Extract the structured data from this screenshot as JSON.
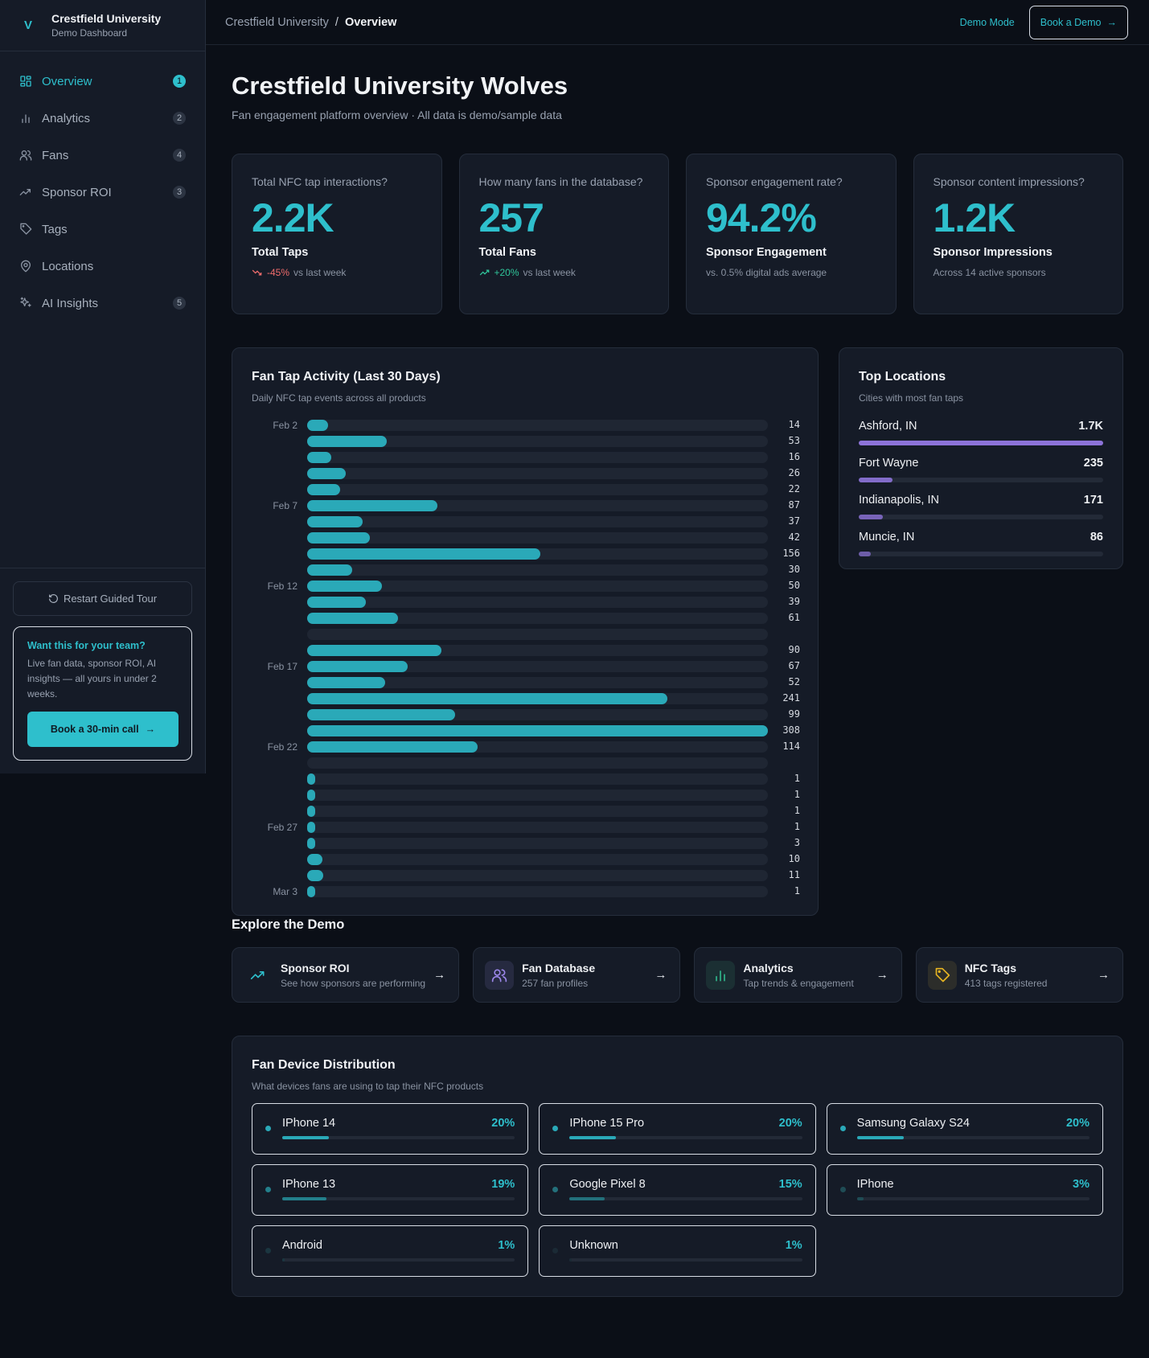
{
  "brand": {
    "logo": "V",
    "name": "Crestfield University",
    "subtitle": "Demo Dashboard"
  },
  "sidebar": {
    "items": [
      {
        "label": "Overview",
        "icon": "grid-icon",
        "badge": "1",
        "active": true
      },
      {
        "label": "Analytics",
        "icon": "bar-chart-icon",
        "badge": "2"
      },
      {
        "label": "Fans",
        "icon": "users-icon",
        "badge": "4"
      },
      {
        "label": "Sponsor ROI",
        "icon": "trending-up-icon",
        "badge": "3"
      },
      {
        "label": "Tags",
        "icon": "tag-icon",
        "badge": ""
      },
      {
        "label": "Locations",
        "icon": "map-pin-icon",
        "badge": ""
      },
      {
        "label": "AI Insights",
        "icon": "sparkles-icon",
        "badge": "5"
      }
    ],
    "restart_label": "Restart Guided Tour",
    "promo": {
      "heading": "Want this for your team?",
      "text": "Live fan data, sponsor ROI, AI insights — all yours in under 2 weeks.",
      "button": "Book a 30-min call"
    }
  },
  "topbar": {
    "breadcrumb_root": "Crestfield University",
    "breadcrumb_sep": "/",
    "breadcrumb_current": "Overview",
    "demo_mode": "Demo Mode",
    "book_demo": "Book a Demo"
  },
  "page": {
    "title": "Crestfield University Wolves",
    "subtitle": "Fan engagement platform overview · All data is demo/sample data"
  },
  "kpis": [
    {
      "question": "Total NFC tap interactions?",
      "value": "2.2K",
      "label": "Total Taps",
      "delta": "-45%",
      "note": "vs last week",
      "trend": "down"
    },
    {
      "question": "How many fans in the database?",
      "value": "257",
      "label": "Total Fans",
      "delta": "+20%",
      "note": "vs last week",
      "trend": "up"
    },
    {
      "question": "Sponsor engagement rate?",
      "value": "94.2%",
      "label": "Sponsor Engagement",
      "delta": "",
      "note": "vs. 0.5% digital ads average"
    },
    {
      "question": "Sponsor content impressions?",
      "value": "1.2K",
      "label": "Sponsor Impressions",
      "delta": "",
      "note": "Across 14 active sponsors"
    }
  ],
  "chart_data": {
    "type": "bar",
    "orientation": "horizontal",
    "title": "Fan Tap Activity (Last 30 Days)",
    "subtitle": "Daily NFC tap events across all products",
    "categories": [
      "Feb 2",
      "Feb 3",
      "Feb 4",
      "Feb 5",
      "Feb 6",
      "Feb 7",
      "Feb 8",
      "Feb 9",
      "Feb 10",
      "Feb 11",
      "Feb 12",
      "Feb 13",
      "Feb 14",
      "Feb 15",
      "Feb 16",
      "Feb 17",
      "Feb 18",
      "Feb 19",
      "Feb 20",
      "Feb 21",
      "Feb 22",
      "Feb 23",
      "Feb 24",
      "Feb 25",
      "Feb 26",
      "Feb 27",
      "Feb 28",
      "Mar 1",
      "Mar 2",
      "Mar 3"
    ],
    "tick_labels": [
      "Feb 2",
      "Feb 7",
      "Feb 12",
      "Feb 17",
      "Feb 22",
      "Feb 27",
      "Mar 3"
    ],
    "values": [
      14,
      53,
      16,
      26,
      22,
      87,
      37,
      42,
      156,
      30,
      50,
      39,
      61,
      null,
      90,
      67,
      52,
      241,
      99,
      308,
      114,
      null,
      1,
      1,
      1,
      1,
      3,
      10,
      11,
      1
    ],
    "color": "#2aa9b8"
  },
  "locations": {
    "title": "Top Locations",
    "subtitle": "Cities with most fan taps",
    "items": [
      {
        "city": "Ashford, IN",
        "value": "1.7K",
        "fill_pct": 100
      },
      {
        "city": "Fort Wayne",
        "value": "235",
        "fill_pct": 13.8
      },
      {
        "city": "Indianapolis, IN",
        "value": "171",
        "fill_pct": 10
      },
      {
        "city": "Muncie, IN",
        "value": "86",
        "fill_pct": 5
      }
    ]
  },
  "explore": {
    "title": "Explore the Demo",
    "items": [
      {
        "title": "Sponsor ROI",
        "subtitle": "See how sponsors are performing",
        "icon": "trending-up-icon",
        "color": "#2ebfcc",
        "bg": "transparent"
      },
      {
        "title": "Fan Database",
        "subtitle": "257 fan profiles",
        "icon": "users-icon",
        "color": "#9b86e8",
        "bg": "#262a40"
      },
      {
        "title": "Analytics",
        "subtitle": "Tap trends & engagement",
        "icon": "bar-chart-icon",
        "color": "#2fb58a",
        "bg": "#1b2f33"
      },
      {
        "title": "NFC Tags",
        "subtitle": "413 tags registered",
        "icon": "tag-icon",
        "color": "#e6b422",
        "bg": "#2c2d2a"
      }
    ]
  },
  "devices": {
    "title": "Fan Device Distribution",
    "subtitle": "What devices fans are using to tap their NFC products",
    "items": [
      {
        "name": "IPhone 14",
        "pct": "20%",
        "value": 20,
        "color": "#2aa9b8"
      },
      {
        "name": "IPhone 15 Pro",
        "pct": "20%",
        "value": 20,
        "color": "#2aa9b8"
      },
      {
        "name": "Samsung Galaxy S24",
        "pct": "20%",
        "value": 20,
        "color": "#2aa9b8"
      },
      {
        "name": "IPhone 13",
        "pct": "19%",
        "value": 19,
        "color": "#23808c"
      },
      {
        "name": "Google Pixel 8",
        "pct": "15%",
        "value": 15,
        "color": "#23707b"
      },
      {
        "name": "IPhone",
        "pct": "3%",
        "value": 3,
        "color": "#1f4c55"
      },
      {
        "name": "Android",
        "pct": "1%",
        "value": 1,
        "color": "#1b3640"
      },
      {
        "name": "Unknown",
        "pct": "1%",
        "value": 1,
        "color": "#1b2a35"
      }
    ]
  }
}
